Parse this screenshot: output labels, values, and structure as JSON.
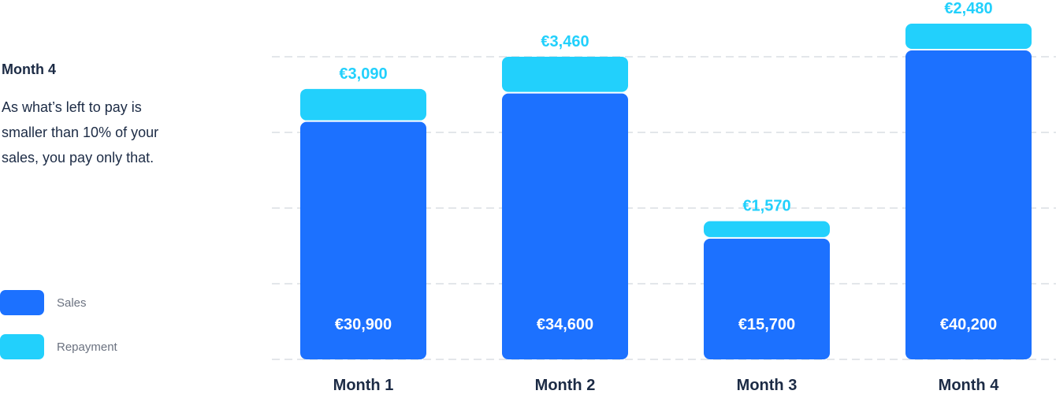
{
  "info": {
    "title": "Month 4",
    "text": "As what’s left to pay is smaller than 10% of your sales, you pay only that."
  },
  "legend": [
    {
      "label": "Sales",
      "color": "#1c71ff"
    },
    {
      "label": "Repayment",
      "color": "#22d0fc"
    }
  ],
  "chart_data": {
    "type": "bar",
    "stacked": true,
    "categories": [
      "Month 1",
      "Month 2",
      "Month 3",
      "Month 4"
    ],
    "series": [
      {
        "name": "Sales",
        "color": "#1c71ff",
        "values": [
          30900,
          34600,
          15700,
          40200
        ],
        "labels": [
          "€30,900",
          "€34,600",
          "€15,700",
          "€40,200"
        ]
      },
      {
        "name": "Repayment",
        "color": "#22d0fc",
        "values": [
          3090,
          3460,
          1570,
          2480
        ],
        "labels": [
          "€3,090",
          "€3,460",
          "€1,570",
          "€2,480"
        ]
      }
    ],
    "grid": true,
    "legend_position": "left",
    "sales_label_color": "#ffffff",
    "repayment_label_color": "#22d0fc",
    "category_label_color": "#1c2b45"
  }
}
